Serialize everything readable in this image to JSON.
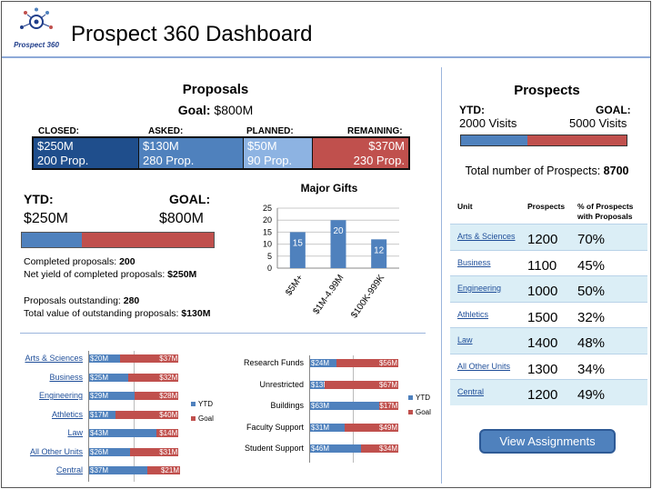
{
  "header": {
    "logo_text": "Prospect 360",
    "title": "Prospect 360 Dashboard"
  },
  "proposals": {
    "title": "Proposals",
    "goal_label": "Goal:",
    "goal_value": "$800M",
    "stages": [
      {
        "head": "CLOSED:",
        "amount": "$250M",
        "count": "200 Prop.",
        "color": "#1f4e8c"
      },
      {
        "head": "ASKED:",
        "amount": "$130M",
        "count": "280 Prop.",
        "color": "#4f81bd"
      },
      {
        "head": "PLANNED:",
        "amount": "$50M",
        "count": "90 Prop.",
        "color": "#8db3e2"
      },
      {
        "head": "REMAINING:",
        "amount": "$370M",
        "count": "230 Prop.",
        "color": "#c0504d"
      }
    ],
    "ytd_label": "YTD:",
    "ytd_value": "$250M",
    "goal2_label": "GOAL:",
    "goal2_value": "$800M",
    "progress_fraction": 0.3125,
    "stats": {
      "completed_label": "Completed proposals: ",
      "completed_value": "200",
      "yield_label": "Net yield of completed proposals: ",
      "yield_value": "$250M",
      "outstanding_label": "Proposals outstanding: ",
      "outstanding_value": "280",
      "total_label": "Total value of outstanding proposals: ",
      "total_value": "$130M"
    }
  },
  "chart_data": [
    {
      "type": "bar",
      "title": "Major Gifts",
      "categories": [
        "$5M+",
        "$1M-4.99M",
        "$100K-999K"
      ],
      "values": [
        15,
        20,
        12
      ],
      "ylim": [
        0,
        25
      ],
      "yticks": [
        "0",
        "5",
        "10",
        "15",
        "20",
        "25"
      ],
      "grid": true,
      "color": "#4f81bd"
    },
    {
      "type": "bar",
      "orientation": "horizontal-stacked",
      "categories": [
        "Arts & Sciences",
        "Business",
        "Engineering",
        "Athletics",
        "Law",
        "All Other Units",
        "Central"
      ],
      "series": [
        {
          "name": "YTD",
          "values": [
            20,
            25,
            29,
            17,
            43,
            26,
            37
          ],
          "labels": [
            "$20M",
            "$25M",
            "$29M",
            "$17M",
            "$43M",
            "$26M",
            "$37M"
          ],
          "color": "#4f81bd"
        },
        {
          "name": "Goal",
          "values": [
            37,
            32,
            28,
            40,
            14,
            31,
            21
          ],
          "labels": [
            "$37M",
            "$32M",
            "$28M",
            "$40M",
            "$14M",
            "$31M",
            "$21M"
          ],
          "color": "#c0504d"
        }
      ],
      "legend": "right"
    },
    {
      "type": "bar",
      "orientation": "horizontal-stacked",
      "categories": [
        "Research Funds",
        "Unrestricted",
        "Buildings",
        "Faculty Support",
        "Student Support"
      ],
      "series": [
        {
          "name": "YTD",
          "values": [
            24,
            13,
            63,
            31,
            46
          ],
          "labels": [
            "$24M",
            "$13M",
            "$63M",
            "$31M",
            "$46M"
          ],
          "color": "#4f81bd"
        },
        {
          "name": "Goal",
          "values": [
            56,
            67,
            17,
            49,
            34
          ],
          "labels": [
            "$56M",
            "$67M",
            "$17M",
            "$49M",
            "$34M"
          ],
          "color": "#c0504d"
        }
      ],
      "legend": "right"
    }
  ],
  "prospects": {
    "title": "Prospects",
    "ytd_label": "YTD:",
    "ytd_value": "2000 Visits",
    "goal_label": "GOAL:",
    "goal_value": "5000 Visits",
    "progress_fraction": 0.4,
    "total_label": "Total number of Prospects: ",
    "total_value": "8700",
    "table": {
      "headers": [
        "Unit",
        "Prospects",
        "% of Prospects with Proposals"
      ],
      "rows": [
        {
          "unit": "Arts & Sciences",
          "prospects": "1200",
          "pct": "70%"
        },
        {
          "unit": "Business",
          "prospects": "1100",
          "pct": "45%"
        },
        {
          "unit": "Engineering",
          "prospects": "1000",
          "pct": "50%"
        },
        {
          "unit": "Athletics",
          "prospects": "1500",
          "pct": "32%"
        },
        {
          "unit": "Law",
          "prospects": "1400",
          "pct": "48%"
        },
        {
          "unit": "All Other Units",
          "prospects": "1300",
          "pct": "34%"
        },
        {
          "unit": "Central",
          "prospects": "1200",
          "pct": "49%"
        }
      ]
    },
    "button_label": "View Assignments"
  },
  "colors": {
    "ytd": "#4f81bd",
    "goal": "#c0504d",
    "accent_rule": "#8eaad8"
  }
}
